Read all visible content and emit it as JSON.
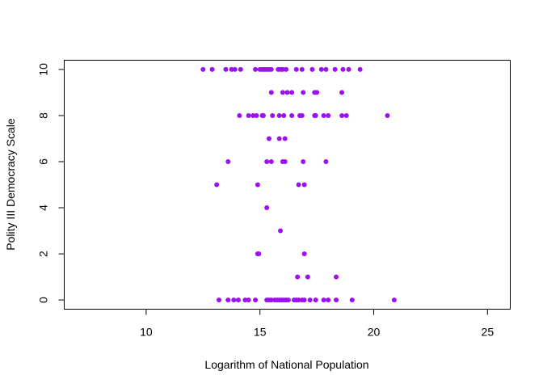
{
  "chart_data": {
    "type": "scatter",
    "xlabel": "Logarithm of National Population",
    "ylabel": "Polity III Democracy Scale",
    "xlim": [
      6.4,
      26.0
    ],
    "ylim": [
      -0.4,
      10.4
    ],
    "xticks": [
      10,
      15,
      20,
      25
    ],
    "yticks": [
      0,
      2,
      4,
      6,
      8,
      10
    ],
    "xtick_labels": [
      "10",
      "15",
      "20",
      "25"
    ],
    "ytick_labels": [
      "0",
      "2",
      "4",
      "6",
      "8",
      "10"
    ],
    "point_color": "#9B11F2",
    "grid": false,
    "legend": "none",
    "points": [
      {
        "x": 12.5,
        "y": 10
      },
      {
        "x": 12.9,
        "y": 10
      },
      {
        "x": 13.5,
        "y": 10
      },
      {
        "x": 13.75,
        "y": 10
      },
      {
        "x": 13.9,
        "y": 10
      },
      {
        "x": 14.15,
        "y": 10
      },
      {
        "x": 14.8,
        "y": 10
      },
      {
        "x": 15.0,
        "y": 10
      },
      {
        "x": 15.1,
        "y": 10
      },
      {
        "x": 15.2,
        "y": 10
      },
      {
        "x": 15.3,
        "y": 10
      },
      {
        "x": 15.4,
        "y": 10
      },
      {
        "x": 15.5,
        "y": 10
      },
      {
        "x": 15.8,
        "y": 10
      },
      {
        "x": 15.9,
        "y": 10
      },
      {
        "x": 16.0,
        "y": 10
      },
      {
        "x": 16.15,
        "y": 10
      },
      {
        "x": 16.6,
        "y": 10
      },
      {
        "x": 16.85,
        "y": 10
      },
      {
        "x": 17.3,
        "y": 10
      },
      {
        "x": 17.7,
        "y": 10
      },
      {
        "x": 17.9,
        "y": 10
      },
      {
        "x": 18.3,
        "y": 10
      },
      {
        "x": 18.65,
        "y": 10
      },
      {
        "x": 18.9,
        "y": 10
      },
      {
        "x": 19.4,
        "y": 10
      },
      {
        "x": 15.5,
        "y": 9
      },
      {
        "x": 16.0,
        "y": 9
      },
      {
        "x": 16.2,
        "y": 9
      },
      {
        "x": 16.4,
        "y": 9
      },
      {
        "x": 16.9,
        "y": 9
      },
      {
        "x": 17.4,
        "y": 9
      },
      {
        "x": 17.5,
        "y": 9
      },
      {
        "x": 18.6,
        "y": 9
      },
      {
        "x": 14.1,
        "y": 8
      },
      {
        "x": 14.5,
        "y": 8
      },
      {
        "x": 14.7,
        "y": 8
      },
      {
        "x": 14.85,
        "y": 8
      },
      {
        "x": 15.1,
        "y": 8
      },
      {
        "x": 15.15,
        "y": 8
      },
      {
        "x": 15.55,
        "y": 8
      },
      {
        "x": 15.85,
        "y": 8
      },
      {
        "x": 16.05,
        "y": 8
      },
      {
        "x": 16.4,
        "y": 8
      },
      {
        "x": 16.75,
        "y": 8
      },
      {
        "x": 16.85,
        "y": 8
      },
      {
        "x": 17.4,
        "y": 8
      },
      {
        "x": 17.45,
        "y": 8
      },
      {
        "x": 17.8,
        "y": 8
      },
      {
        "x": 18.0,
        "y": 8
      },
      {
        "x": 18.6,
        "y": 8
      },
      {
        "x": 18.8,
        "y": 8
      },
      {
        "x": 20.6,
        "y": 8
      },
      {
        "x": 15.4,
        "y": 7
      },
      {
        "x": 15.85,
        "y": 7
      },
      {
        "x": 16.1,
        "y": 7
      },
      {
        "x": 13.6,
        "y": 6
      },
      {
        "x": 15.3,
        "y": 6
      },
      {
        "x": 15.5,
        "y": 6
      },
      {
        "x": 16.0,
        "y": 6
      },
      {
        "x": 16.1,
        "y": 6
      },
      {
        "x": 16.9,
        "y": 6
      },
      {
        "x": 17.9,
        "y": 6
      },
      {
        "x": 13.1,
        "y": 5
      },
      {
        "x": 14.9,
        "y": 5
      },
      {
        "x": 16.7,
        "y": 5
      },
      {
        "x": 16.95,
        "y": 5
      },
      {
        "x": 15.3,
        "y": 4
      },
      {
        "x": 15.9,
        "y": 3
      },
      {
        "x": 14.9,
        "y": 2
      },
      {
        "x": 14.95,
        "y": 2
      },
      {
        "x": 16.95,
        "y": 2
      },
      {
        "x": 16.65,
        "y": 1
      },
      {
        "x": 17.1,
        "y": 1
      },
      {
        "x": 18.35,
        "y": 1
      },
      {
        "x": 13.2,
        "y": 0
      },
      {
        "x": 13.6,
        "y": 0
      },
      {
        "x": 13.85,
        "y": 0
      },
      {
        "x": 14.05,
        "y": 0
      },
      {
        "x": 14.35,
        "y": 0
      },
      {
        "x": 14.5,
        "y": 0
      },
      {
        "x": 14.8,
        "y": 0
      },
      {
        "x": 15.3,
        "y": 0
      },
      {
        "x": 15.4,
        "y": 0
      },
      {
        "x": 15.5,
        "y": 0
      },
      {
        "x": 15.65,
        "y": 0
      },
      {
        "x": 15.75,
        "y": 0
      },
      {
        "x": 15.85,
        "y": 0
      },
      {
        "x": 15.95,
        "y": 0
      },
      {
        "x": 16.05,
        "y": 0
      },
      {
        "x": 16.15,
        "y": 0
      },
      {
        "x": 16.25,
        "y": 0
      },
      {
        "x": 16.5,
        "y": 0
      },
      {
        "x": 16.6,
        "y": 0
      },
      {
        "x": 16.7,
        "y": 0
      },
      {
        "x": 16.85,
        "y": 0
      },
      {
        "x": 16.95,
        "y": 0
      },
      {
        "x": 17.2,
        "y": 0
      },
      {
        "x": 17.45,
        "y": 0
      },
      {
        "x": 17.8,
        "y": 0
      },
      {
        "x": 18.0,
        "y": 0
      },
      {
        "x": 18.35,
        "y": 0
      },
      {
        "x": 19.05,
        "y": 0
      },
      {
        "x": 20.9,
        "y": 0
      }
    ]
  }
}
